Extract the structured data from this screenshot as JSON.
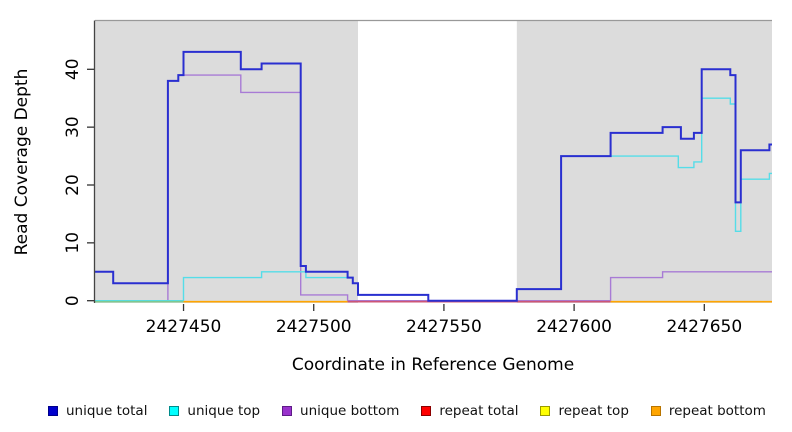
{
  "chart_data": {
    "type": "line",
    "subtype": "step-coverage",
    "title": "",
    "xlabel": "Coordinate in Reference Genome",
    "ylabel": "Read Coverage Depth",
    "xlim": [
      2427416,
      2427676
    ],
    "ylim": [
      0,
      48
    ],
    "grid": false,
    "panel_background": "#DCDCDC",
    "top_border_color": "#999999",
    "axis_color": "#444444",
    "x_ticks": [
      2427450,
      2427500,
      2427550,
      2427600,
      2427650
    ],
    "x_tick_labels": [
      "2427450",
      "2427500",
      "2427550",
      "2427600",
      "2427650"
    ],
    "y_ticks": [
      0,
      10,
      20,
      30,
      40
    ],
    "y_tick_labels": [
      "0",
      "10",
      "20",
      "30",
      "40"
    ],
    "masked_region": {
      "from": 2427517,
      "to": 2427578,
      "color": "#FFFFFF"
    },
    "series": [
      {
        "name": "unique bottom",
        "color": "#A87BD5",
        "width": 1.4,
        "steps": [
          [
            2427416,
            0
          ],
          [
            2427444,
            38
          ],
          [
            2427448,
            39
          ],
          [
            2427472,
            36
          ],
          [
            2427495,
            1
          ],
          [
            2427513,
            0
          ],
          [
            2427614,
            4
          ],
          [
            2427634,
            5
          ]
        ]
      },
      {
        "name": "unique top",
        "color": "#55DDE8",
        "width": 1.4,
        "steps": [
          [
            2427416,
            0
          ],
          [
            2427450,
            4
          ],
          [
            2427480,
            5
          ],
          [
            2427497,
            4
          ],
          [
            2427515,
            3
          ],
          [
            2427517,
            1
          ],
          [
            2427544,
            0
          ],
          [
            2427578,
            2
          ],
          [
            2427595,
            25
          ],
          [
            2427640,
            23
          ],
          [
            2427646,
            24
          ],
          [
            2427649,
            35
          ],
          [
            2427660,
            34
          ],
          [
            2427662,
            12
          ],
          [
            2427664,
            21
          ],
          [
            2427675,
            22
          ]
        ]
      },
      {
        "name": "unique total",
        "color": "#2A2FD0",
        "width": 2,
        "steps": [
          [
            2427416,
            5
          ],
          [
            2427423,
            3
          ],
          [
            2427444,
            38
          ],
          [
            2427448,
            39
          ],
          [
            2427450,
            43
          ],
          [
            2427472,
            40
          ],
          [
            2427480,
            41
          ],
          [
            2427495,
            6
          ],
          [
            2427497,
            5
          ],
          [
            2427513,
            4
          ],
          [
            2427515,
            3
          ],
          [
            2427517,
            1
          ],
          [
            2427544,
            0
          ],
          [
            2427578,
            2
          ],
          [
            2427595,
            25
          ],
          [
            2427614,
            29
          ],
          [
            2427634,
            30
          ],
          [
            2427641,
            28
          ],
          [
            2427646,
            29
          ],
          [
            2427649,
            40
          ],
          [
            2427660,
            39
          ],
          [
            2427662,
            17
          ],
          [
            2427664,
            26
          ],
          [
            2427675,
            27
          ]
        ]
      },
      {
        "name": "repeat total",
        "color": "#CC5577",
        "width": 1.6,
        "steps": [
          [
            2427416,
            0
          ]
        ]
      },
      {
        "name": "repeat top",
        "color": "#FFFF00",
        "width": 1.6,
        "steps": [
          [
            2427416,
            0
          ]
        ]
      },
      {
        "name": "repeat bottom",
        "color": "#FFA500",
        "width": 1.6,
        "steps": [
          [
            2427416,
            0
          ]
        ]
      }
    ],
    "zero_line_segments": [
      {
        "from": 2427416,
        "to": 2427450,
        "color": "#7FC98F"
      },
      {
        "from": 2427450,
        "to": 2427513,
        "color": "#FFA500"
      },
      {
        "from": 2427513,
        "to": 2427614,
        "color": "#CC5577"
      },
      {
        "from": 2427614,
        "to": 2427676,
        "color": "#FFA500"
      }
    ]
  },
  "axes": {
    "x_title": "Coordinate in Reference Genome",
    "y_title": "Read Coverage Depth"
  },
  "legend": {
    "items": [
      {
        "label": "unique total",
        "fill": "#0000CD",
        "stroke": "#00008B"
      },
      {
        "label": "unique top",
        "fill": "#00FFFF",
        "stroke": "#008B8B"
      },
      {
        "label": "unique bottom",
        "fill": "#9932CC",
        "stroke": "#5E1B87"
      },
      {
        "label": "repeat total",
        "fill": "#FF0000",
        "stroke": "#8B0000"
      },
      {
        "label": "repeat top",
        "fill": "#FFFF00",
        "stroke": "#9A9A00"
      },
      {
        "label": "repeat bottom",
        "fill": "#FFA500",
        "stroke": "#B87400"
      }
    ]
  }
}
